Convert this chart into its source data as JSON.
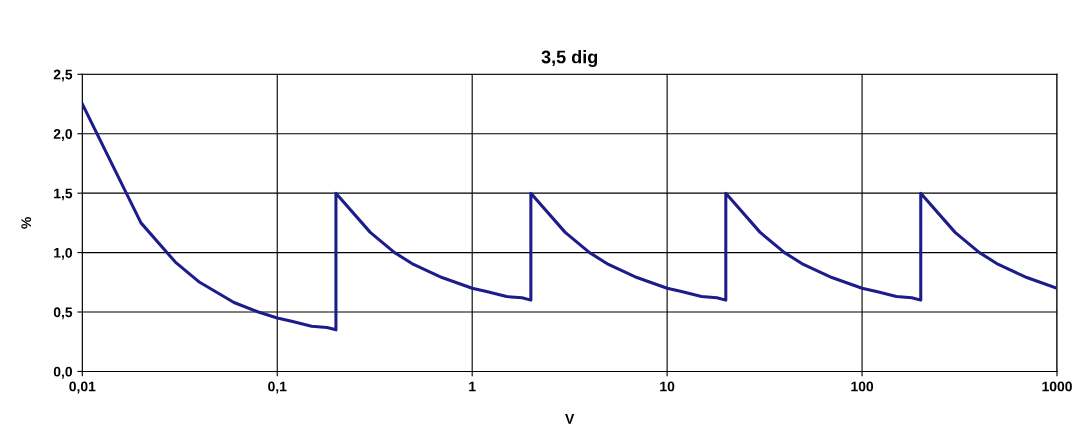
{
  "chart_data": {
    "type": "line",
    "title": "3,5 dig",
    "xlabel": "V",
    "ylabel": "%",
    "log": "x",
    "grid": true,
    "marker": "none",
    "line_style": "solid",
    "xlim": [
      0.01,
      1000
    ],
    "xticks": [
      {
        "value": 0.01,
        "label": "0,01"
      },
      {
        "value": 0.1,
        "label": "0,1"
      },
      1,
      10,
      100,
      1000
    ],
    "ylim": [
      0,
      2.5
    ],
    "yticks": [
      {
        "value": 0,
        "label": "0,0"
      },
      {
        "value": 0.5,
        "label": "0,5"
      },
      {
        "value": 1,
        "label": "1,0"
      },
      {
        "value": 1.5,
        "label": "1,5"
      },
      {
        "value": 2,
        "label": "2,0"
      },
      {
        "value": 2.5,
        "label": "2,5"
      }
    ],
    "series": [
      {
        "color": "#1c1c8a",
        "x": [
          0.01,
          0.02,
          0.03,
          0.04,
          0.06,
          0.08,
          0.1,
          0.12,
          0.15,
          0.18,
          0.2,
          0.2,
          0.3,
          0.4,
          0.5,
          0.7,
          1,
          1.2,
          1.5,
          1.8,
          2,
          2,
          3,
          4,
          5,
          7,
          10,
          12,
          15,
          18,
          20,
          20,
          30,
          40,
          50,
          70,
          100,
          120,
          150,
          180,
          200,
          200,
          300,
          400,
          500,
          700,
          1000
        ],
        "values": [
          2.25,
          1.25,
          0.92,
          0.75,
          0.58,
          0.5,
          0.45,
          0.42,
          0.38,
          0.37,
          0.35,
          1.5,
          1.17,
          1.0,
          0.9,
          0.79,
          0.7,
          0.67,
          0.63,
          0.62,
          0.6,
          1.5,
          1.17,
          1.0,
          0.9,
          0.79,
          0.7,
          0.67,
          0.63,
          0.62,
          0.6,
          1.5,
          1.17,
          1.0,
          0.9,
          0.79,
          0.7,
          0.67,
          0.63,
          0.62,
          0.6,
          1.5,
          1.17,
          1.0,
          0.9,
          0.79,
          0.7
        ]
      }
    ]
  }
}
